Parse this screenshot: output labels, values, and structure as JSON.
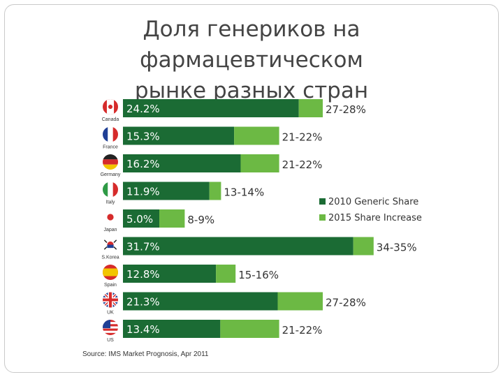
{
  "slide": {
    "title_line1": "Доля генериков на фармацевтическом",
    "title_line2": "рынке разных стран",
    "source": "Source: IMS Market Prognosis, Apr 2011"
  },
  "colors": {
    "base": "#1b6b34",
    "increase": "#6cb944",
    "base_text": "#ffffff",
    "label_text": "#333333"
  },
  "chart_data": {
    "type": "bar",
    "orientation": "horizontal",
    "stacked": true,
    "categories": [
      "Canada",
      "France",
      "Germany",
      "Italy",
      "Japan",
      "S.Korea",
      "Spain",
      "UK",
      "US"
    ],
    "flag_icons": [
      "canada-flag-icon",
      "france-flag-icon",
      "germany-flag-icon",
      "italy-flag-icon",
      "japan-flag-icon",
      "south-korea-flag-icon",
      "spain-flag-icon",
      "uk-flag-icon",
      "us-flag-icon"
    ],
    "series": [
      {
        "name": "2010 Generic Share",
        "values": [
          24.2,
          15.3,
          16.2,
          11.9,
          5.0,
          31.7,
          12.8,
          21.3,
          13.4
        ]
      },
      {
        "name": "2015 Share Increase",
        "values": [
          3.3,
          6.2,
          5.3,
          1.6,
          3.5,
          2.8,
          2.7,
          6.2,
          8.1
        ]
      }
    ],
    "base_labels": [
      "24.2%",
      "15.3%",
      "16.2%",
      "11.9%",
      "5.0%",
      "31.7%",
      "12.8%",
      "21.3%",
      "13.4%"
    ],
    "end_labels": [
      "27-28%",
      "21-22%",
      "21-22%",
      "13-14%",
      "8-9%",
      "34-35%",
      "15-16%",
      "27-28%",
      "21-22%"
    ],
    "legend_position": "right",
    "xlim": [
      0,
      35
    ],
    "grid": false
  }
}
